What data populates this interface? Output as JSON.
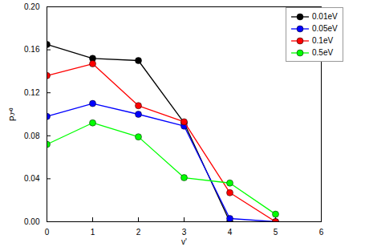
{
  "chart_data": {
    "type": "line",
    "x_label": "v'",
    "y_label": "Pᴶ⁼⁰",
    "x": [
      0,
      1,
      2,
      3,
      4,
      5
    ],
    "series": [
      {
        "name": "0.01eV",
        "color": "#000000",
        "values": [
          0.165,
          0.152,
          0.15,
          0.092,
          0.0,
          null
        ]
      },
      {
        "name": "0.05eV",
        "color": "#0000ff",
        "values": [
          0.098,
          0.11,
          0.1,
          0.089,
          0.003,
          0.0
        ]
      },
      {
        "name": "0.1eV",
        "color": "#ff0000",
        "values": [
          0.136,
          0.147,
          0.108,
          0.093,
          0.027,
          0.0
        ]
      },
      {
        "name": "0.5eV",
        "color": "#00ff00",
        "values": [
          0.072,
          0.092,
          0.079,
          0.041,
          0.036,
          0.007
        ]
      }
    ],
    "xlim": [
      0,
      6
    ],
    "xticks": [
      0,
      1,
      2,
      3,
      4,
      5,
      6
    ],
    "ylim": [
      0,
      0.2
    ],
    "yticks": [
      {
        "value": 0,
        "label": "0.00"
      },
      0.04,
      0.08,
      0.12,
      0.16,
      {
        "value": 0.2,
        "label": "0.20"
      }
    ],
    "marker": "circle",
    "legend": "upper right"
  }
}
